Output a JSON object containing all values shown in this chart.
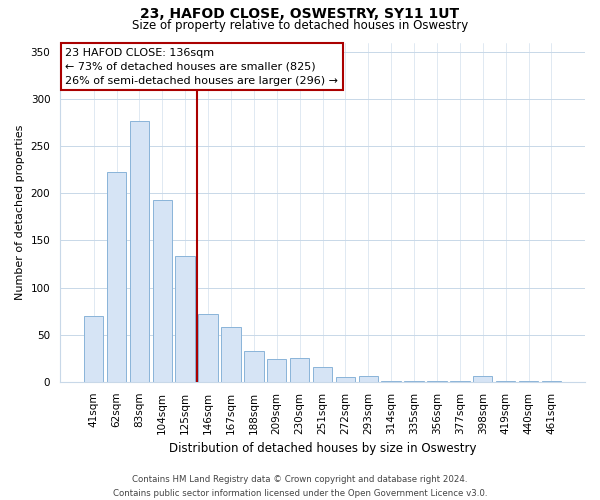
{
  "title": "23, HAFOD CLOSE, OSWESTRY, SY11 1UT",
  "subtitle": "Size of property relative to detached houses in Oswestry",
  "xlabel": "Distribution of detached houses by size in Oswestry",
  "ylabel": "Number of detached properties",
  "categories": [
    "41sqm",
    "62sqm",
    "83sqm",
    "104sqm",
    "125sqm",
    "146sqm",
    "167sqm",
    "188sqm",
    "209sqm",
    "230sqm",
    "251sqm",
    "272sqm",
    "293sqm",
    "314sqm",
    "335sqm",
    "356sqm",
    "377sqm",
    "398sqm",
    "419sqm",
    "440sqm",
    "461sqm"
  ],
  "values": [
    70,
    223,
    277,
    193,
    133,
    72,
    58,
    33,
    24,
    25,
    16,
    5,
    6,
    1,
    1,
    1,
    1,
    6,
    1,
    1,
    1
  ],
  "bar_color": "#d6e4f5",
  "bar_edge_color": "#8ab4d9",
  "vline_x": 4.5,
  "vline_color": "#aa0000",
  "annotation_text": "23 HAFOD CLOSE: 136sqm\n← 73% of detached houses are smaller (825)\n26% of semi-detached houses are larger (296) →",
  "annotation_box_facecolor": "#ffffff",
  "annotation_box_edgecolor": "#aa0000",
  "ylim": [
    0,
    360
  ],
  "yticks": [
    0,
    50,
    100,
    150,
    200,
    250,
    300,
    350
  ],
  "footer_line1": "Contains HM Land Registry data © Crown copyright and database right 2024.",
  "footer_line2": "Contains public sector information licensed under the Open Government Licence v3.0.",
  "bg_color": "#ffffff",
  "plot_bg_color": "#ffffff",
  "grid_color": "#c8d8e8",
  "title_fontsize": 10,
  "subtitle_fontsize": 8.5,
  "tick_fontsize": 7.5,
  "ylabel_fontsize": 8,
  "xlabel_fontsize": 8.5,
  "annotation_fontsize": 8
}
